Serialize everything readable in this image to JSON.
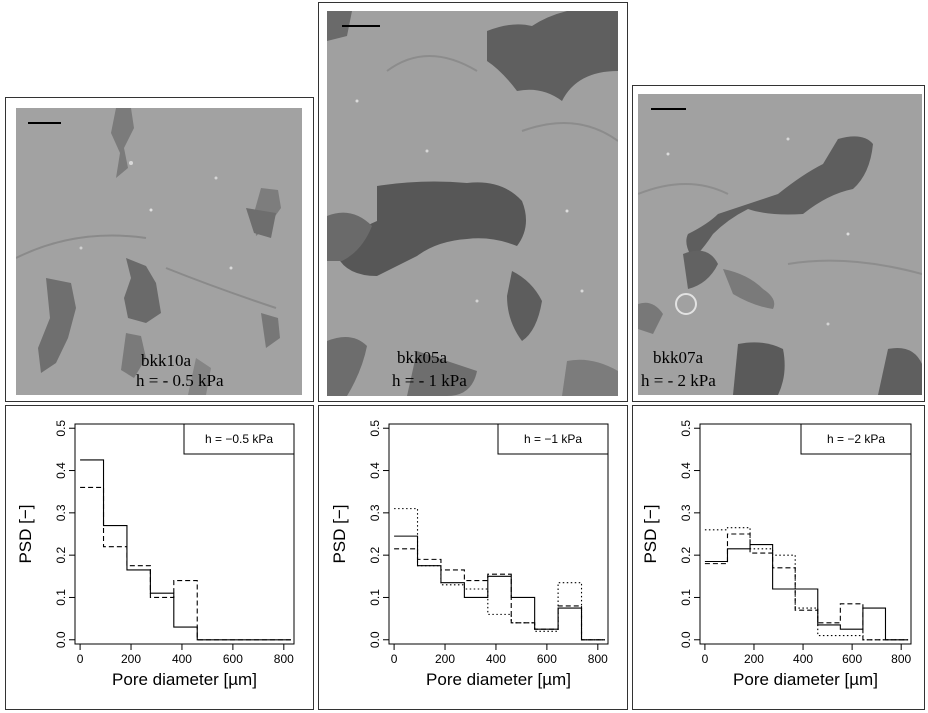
{
  "panels": [
    {
      "sample": "bkk10a",
      "pressure": "h = - 0.5 kPa"
    },
    {
      "sample": "bkk05a",
      "pressure": "h = - 1 kPa"
    },
    {
      "sample": "bkk07a",
      "pressure": "h = - 2 kPa"
    }
  ],
  "colors": {
    "micro_bg": "#9e9e9e",
    "pore_dark": "#5a5a5a",
    "pore_mid": "#7b7b7b"
  },
  "chart_data": [
    {
      "type": "line",
      "legend": "h = −0.5 kPa",
      "legend_position": "top-right",
      "xlabel": "Pore diameter [µm]",
      "ylabel": "PSD [−]",
      "xlim": [
        -20,
        840
      ],
      "ylim": [
        -0.01,
        0.51
      ],
      "x_ticks": [
        0,
        200,
        400,
        600,
        800
      ],
      "y_ticks": [
        0.0,
        0.1,
        0.2,
        0.3,
        0.4,
        0.5
      ],
      "bin_edges": [
        0,
        92,
        184,
        276,
        368,
        460,
        552,
        644,
        736,
        828
      ],
      "series": [
        {
          "style": "solid",
          "values": [
            0.425,
            0.27,
            0.165,
            0.11,
            0.03,
            0.0,
            0.0,
            0.0,
            0.0
          ]
        },
        {
          "style": "dashed",
          "values": [
            0.36,
            0.22,
            0.175,
            0.1,
            0.14,
            0.0,
            0.0,
            0.0,
            0.0
          ]
        }
      ]
    },
    {
      "type": "line",
      "legend": "h = −1 kPa",
      "legend_position": "top-right",
      "xlabel": "Pore diameter [µm]",
      "ylabel": "PSD [−]",
      "xlim": [
        -20,
        840
      ],
      "ylim": [
        -0.01,
        0.51
      ],
      "x_ticks": [
        0,
        200,
        400,
        600,
        800
      ],
      "y_ticks": [
        0.0,
        0.1,
        0.2,
        0.3,
        0.4,
        0.5
      ],
      "bin_edges": [
        0,
        92,
        184,
        276,
        368,
        460,
        552,
        644,
        736,
        828
      ],
      "series": [
        {
          "style": "solid",
          "values": [
            0.245,
            0.175,
            0.135,
            0.1,
            0.15,
            0.1,
            0.025,
            0.075,
            0.0
          ]
        },
        {
          "style": "dashed",
          "values": [
            0.215,
            0.19,
            0.165,
            0.14,
            0.155,
            0.04,
            0.025,
            0.08,
            0.0
          ]
        },
        {
          "style": "dotted",
          "values": [
            0.31,
            0.175,
            0.13,
            0.12,
            0.06,
            0.04,
            0.02,
            0.135,
            0.0
          ]
        }
      ]
    },
    {
      "type": "line",
      "legend": "h = −2 kPa",
      "legend_position": "top-right",
      "xlabel": "Pore diameter [µm]",
      "ylabel": "PSD [−]",
      "xlim": [
        -20,
        840
      ],
      "ylim": [
        -0.01,
        0.51
      ],
      "x_ticks": [
        0,
        200,
        400,
        600,
        800
      ],
      "y_ticks": [
        0.0,
        0.1,
        0.2,
        0.3,
        0.4,
        0.5
      ],
      "bin_edges": [
        0,
        92,
        184,
        276,
        368,
        460,
        552,
        644,
        736,
        828
      ],
      "series": [
        {
          "style": "solid",
          "values": [
            0.185,
            0.215,
            0.225,
            0.12,
            0.12,
            0.035,
            0.025,
            0.075,
            0.0
          ]
        },
        {
          "style": "dashed",
          "values": [
            0.18,
            0.25,
            0.205,
            0.17,
            0.07,
            0.04,
            0.085,
            0.0,
            0.0
          ]
        },
        {
          "style": "dotted",
          "values": [
            0.26,
            0.265,
            0.215,
            0.2,
            0.075,
            0.01,
            0.01,
            0.0,
            0.0
          ]
        }
      ]
    }
  ]
}
